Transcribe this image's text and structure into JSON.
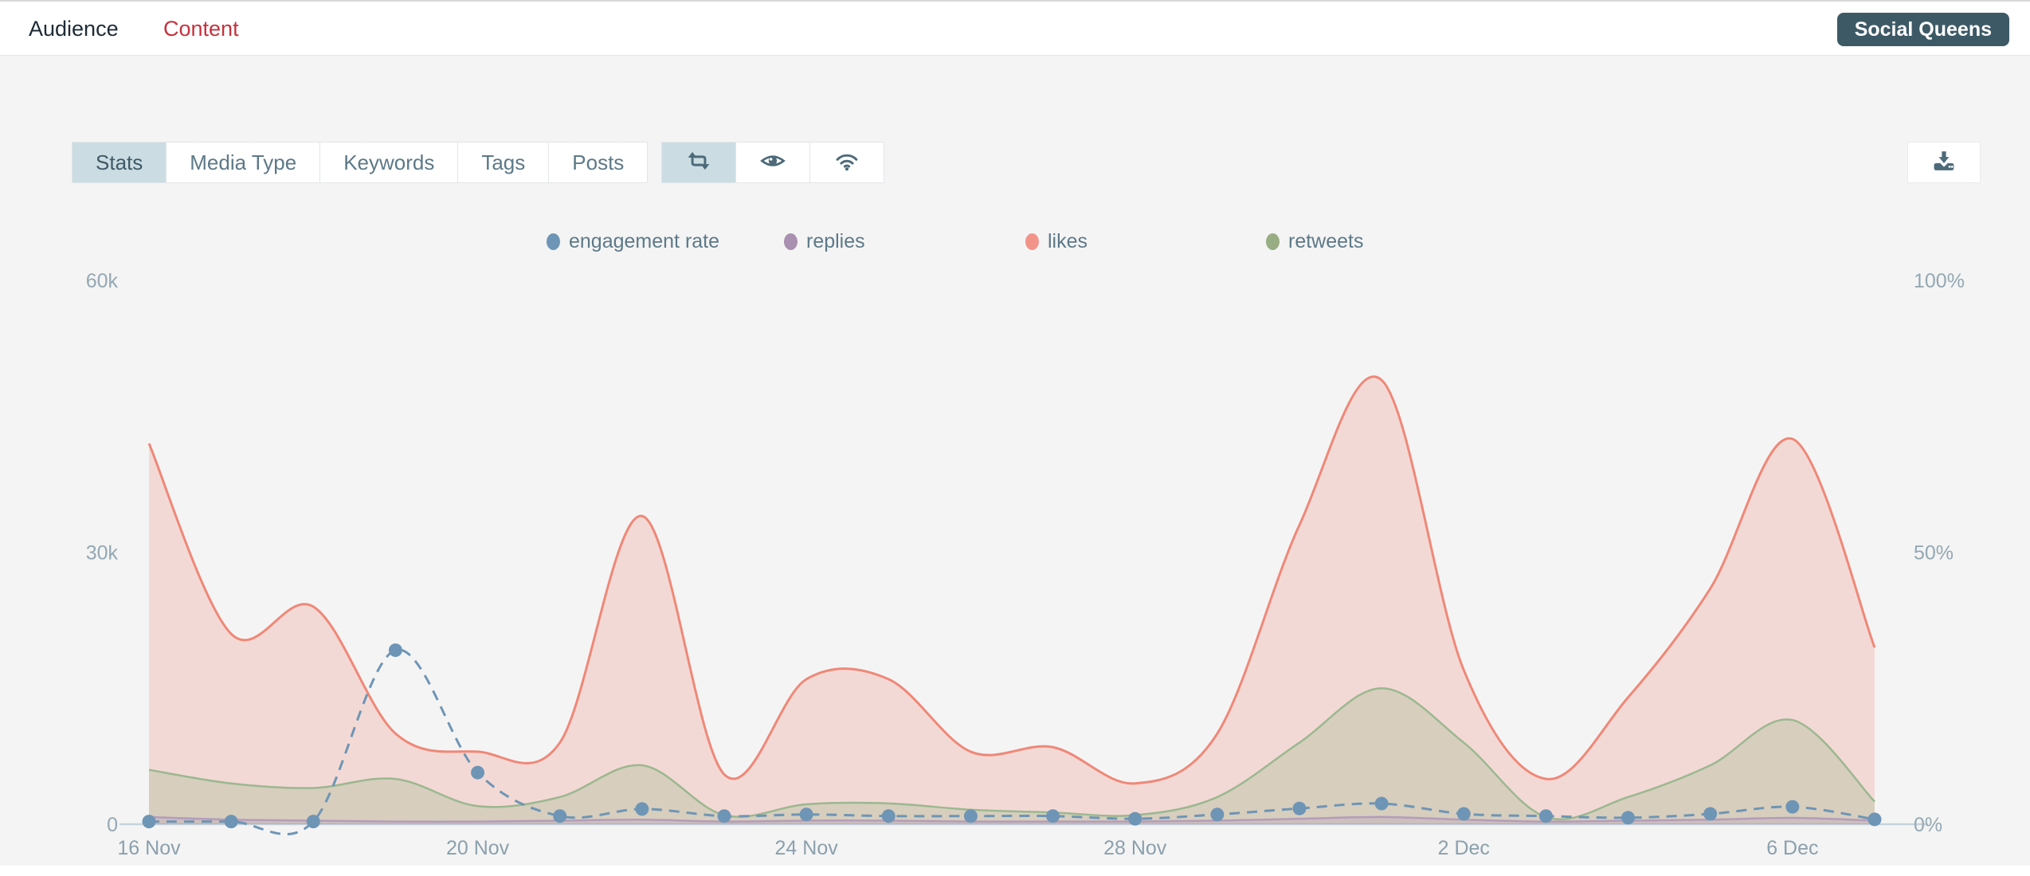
{
  "header": {
    "nav_audience": "Audience",
    "nav_content": "Content",
    "account_badge": "Social Queens"
  },
  "toolbar": {
    "tabs": [
      "Stats",
      "Media Type",
      "Keywords",
      "Tags",
      "Posts"
    ],
    "active_tab": "Stats",
    "icon_buttons": [
      {
        "icon": "retweet-icon",
        "active": true
      },
      {
        "icon": "eye-icon",
        "active": false
      },
      {
        "icon": "wifi-icon",
        "active": false
      }
    ],
    "download_icon": "download-icon"
  },
  "colors": {
    "page_background": "#f4f4f4",
    "accent_red": "#c5323e",
    "badge_background": "#3d5966",
    "tab_active_background": "#cbdce2",
    "slate_text": "#5d7988",
    "icon_color": "#4d6a79",
    "axis_label": "#94a8b3",
    "baseline": "#c6d3dd",
    "engagement": "#6e95b5",
    "replies": "#a98fb0",
    "likes": "#ef8878",
    "retweets": "#9bb88f"
  },
  "chart_data": {
    "type": "area",
    "x": [
      "16 Nov",
      "17 Nov",
      "18 Nov",
      "19 Nov",
      "20 Nov",
      "21 Nov",
      "22 Nov",
      "23 Nov",
      "24 Nov",
      "25 Nov",
      "26 Nov",
      "27 Nov",
      "28 Nov",
      "29 Nov",
      "30 Nov",
      "1 Dec",
      "2 Dec",
      "3 Dec",
      "4 Dec",
      "5 Dec",
      "6 Dec",
      "7 Dec"
    ],
    "x_tick_idx": [
      0,
      4,
      8,
      12,
      16,
      20
    ],
    "x_tick_labels": [
      "16 Nov",
      "20 Nov",
      "24 Nov",
      "28 Nov",
      "2 Dec",
      "6 Dec"
    ],
    "y_left": {
      "ticks": [
        "60k",
        "30k",
        "0"
      ],
      "tick_values": [
        60000,
        30000,
        0
      ],
      "max": 60000
    },
    "y_right": {
      "ticks": [
        "100%",
        "50%",
        "0%"
      ],
      "tick_values": [
        100,
        50,
        0
      ],
      "max": 100
    },
    "grid": false,
    "legend_position": "top",
    "series": [
      {
        "name": "likes",
        "type": "area",
        "axis": "left",
        "color": "#ef8878",
        "fill_alpha": 0.25,
        "values": [
          42000,
          21000,
          24000,
          10000,
          8000,
          9000,
          34000,
          5500,
          16000,
          16000,
          8000,
          8500,
          4500,
          10000,
          33000,
          49000,
          17000,
          5000,
          14000,
          26000,
          42500,
          19500
        ]
      },
      {
        "name": "retweets",
        "type": "area",
        "axis": "left",
        "color": "#9bb88f",
        "fill_alpha": 0.32,
        "values": [
          6000,
          4500,
          4000,
          5000,
          2000,
          3000,
          6500,
          1000,
          2200,
          2300,
          1600,
          1300,
          1000,
          3000,
          9000,
          15000,
          9000,
          800,
          3000,
          6500,
          11500,
          2500
        ]
      },
      {
        "name": "replies",
        "type": "area",
        "axis": "left",
        "color": "#b49cba",
        "fill_alpha": 0.28,
        "values": [
          800,
          500,
          400,
          300,
          300,
          400,
          500,
          300,
          400,
          400,
          300,
          300,
          300,
          400,
          600,
          800,
          500,
          300,
          400,
          500,
          700,
          400
        ]
      },
      {
        "name": "engagement rate",
        "type": "dashed-line-dots",
        "axis": "right",
        "color": "#6e95b5",
        "values": [
          0.5,
          0.5,
          0.5,
          32,
          9.5,
          1.5,
          2.8,
          1.5,
          1.8,
          1.5,
          1.5,
          1.5,
          1.0,
          1.8,
          2.9,
          3.8,
          1.9,
          1.5,
          1.2,
          1.9,
          3.2,
          0.9
        ]
      }
    ],
    "legend": [
      {
        "label": "engagement rate",
        "color": "#6e95b5"
      },
      {
        "label": "replies",
        "color": "#a98fb0"
      },
      {
        "label": "likes",
        "color": "#f2938a"
      },
      {
        "label": "retweets",
        "color": "#98ad83"
      }
    ]
  }
}
